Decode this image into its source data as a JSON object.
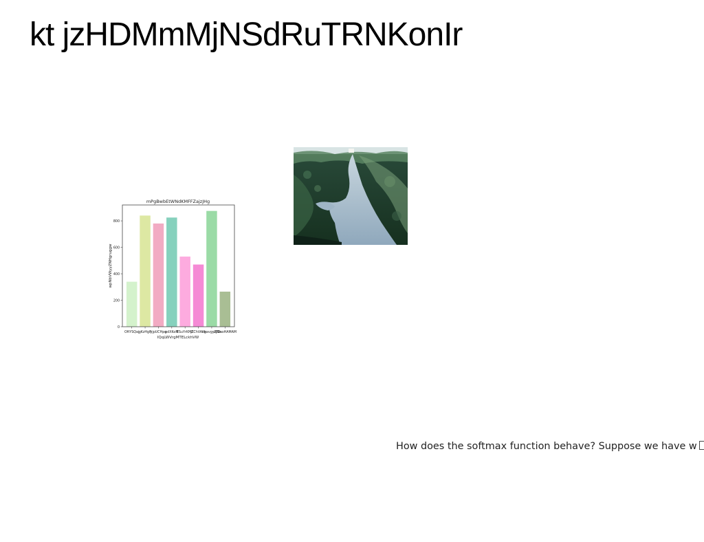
{
  "page": {
    "title": "kt jzHDMmMjNSdRuTRNKonIr",
    "question": "How does the softmax function behave? Suppose we have w",
    "question_trailing_glyph": "missing-glyph-box"
  },
  "photo": {
    "subject": "gravel path through green shrubs on sand dunes",
    "colors": {
      "sky": "#d9e6e6",
      "vegetation_dark": "#1c3a2c",
      "vegetation_mid": "#4c7654",
      "path": "#a9bfcf",
      "shadow": "#14261e"
    }
  },
  "chart_data": {
    "type": "bar",
    "title": "mPgBwbEtWNdKMFFZajzJHg",
    "xlabel": "IQqLWVrgMTELckhVW",
    "ylabel": "wpNbVWyyZNHgruggw",
    "categories": [
      "OftYSQaj",
      "gKzHgR",
      "yjpUCHpq",
      "pdXKoM",
      "ESuYrKMZ",
      "jLChVAdk",
      "hgavgyzJNa",
      "iZiDsoHAMAM"
    ],
    "values": [
      340,
      840,
      780,
      825,
      530,
      470,
      875,
      265
    ],
    "colors": [
      "#d4f2cc",
      "#dde8a3",
      "#f2abc3",
      "#86d1bd",
      "#fdabdf",
      "#f58ad5",
      "#9bdba6",
      "#a9be94"
    ],
    "yticks": [
      0,
      200,
      400,
      600,
      800
    ],
    "ylim": [
      0,
      920
    ],
    "grid": false
  }
}
